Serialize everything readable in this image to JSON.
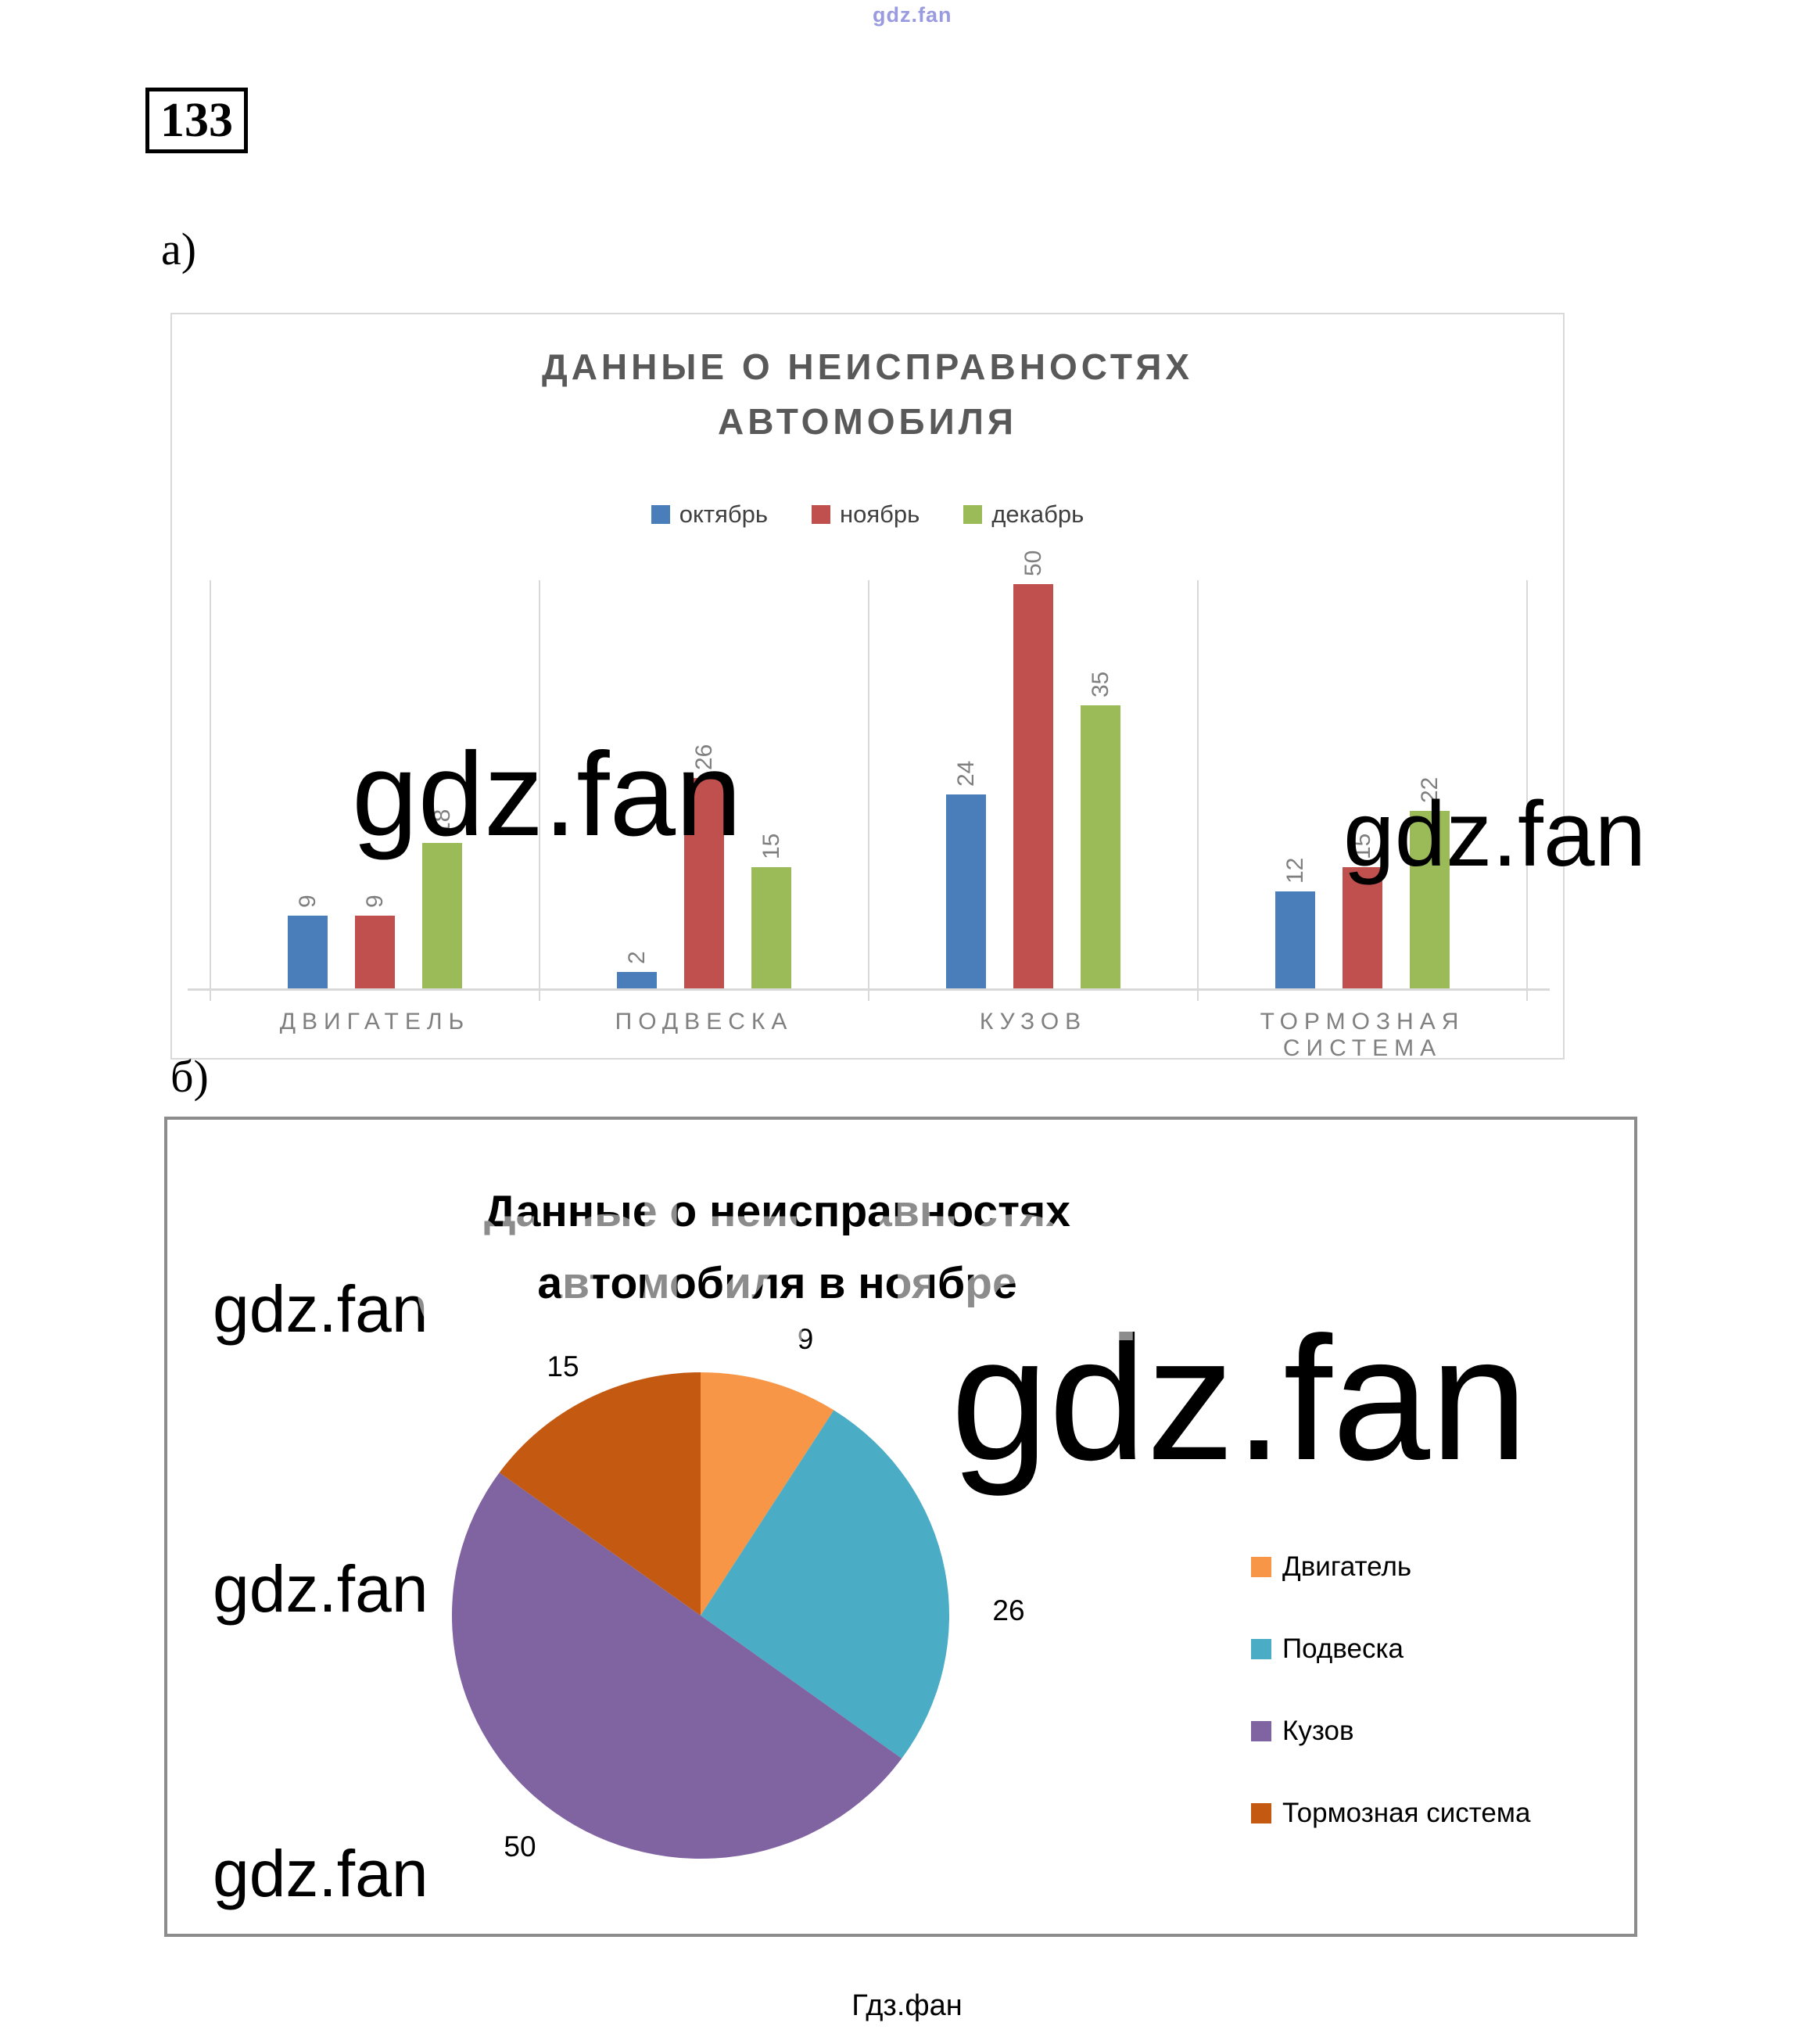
{
  "page": {
    "number": "133",
    "section_a_label": "а)",
    "section_b_label": "б)",
    "footer": "Гдз.фан"
  },
  "watermarks": {
    "text": "gdz.fan"
  },
  "chart_data": [
    {
      "type": "bar",
      "title": "ДАННЫЕ О НЕИСПРАВНОСТЯХ АВТОМОБИЛЯ",
      "title_lines": [
        "ДАННЫЕ О НЕИСПРАВНОСТЯХ",
        "АВТОМОБИЛЯ"
      ],
      "categories": [
        "ДВИГАТЕЛЬ",
        "ПОДВЕСКА",
        "КУЗОВ",
        "ТОРМОЗНАЯ СИСТЕМА"
      ],
      "series": [
        {
          "name": "октябрь",
          "color": "#4a7eba",
          "values": [
            9,
            2,
            24,
            12
          ]
        },
        {
          "name": "ноябрь",
          "color": "#c0504d",
          "values": [
            9,
            26,
            50,
            15
          ]
        },
        {
          "name": "декабрь",
          "color": "#9bbb59",
          "values": [
            18,
            15,
            35,
            22
          ]
        }
      ],
      "ylim": [
        0,
        50
      ],
      "grid": "vertical-category-separators",
      "legend_position": "top-center",
      "value_labels": "rotated-90-above-bars",
      "text_colors": {
        "title": "#595959",
        "labels": "#7f7f7f",
        "legend": "#404040"
      }
    },
    {
      "type": "pie",
      "title": "Данные о неисправностях автомобиля в ноябре",
      "title_lines": [
        "Данные о неисправностях",
        "автомобиля в ноябре"
      ],
      "labels": [
        "Двигатель",
        "Подвеска",
        "Кузов",
        "Тормозная система"
      ],
      "values": [
        9,
        26,
        50,
        15
      ],
      "colors": [
        "#f79646",
        "#4bacc6",
        "#8064a2",
        "#c45911"
      ],
      "legend_position": "right",
      "start_angle_deg": 0,
      "direction": "clockwise"
    }
  ]
}
